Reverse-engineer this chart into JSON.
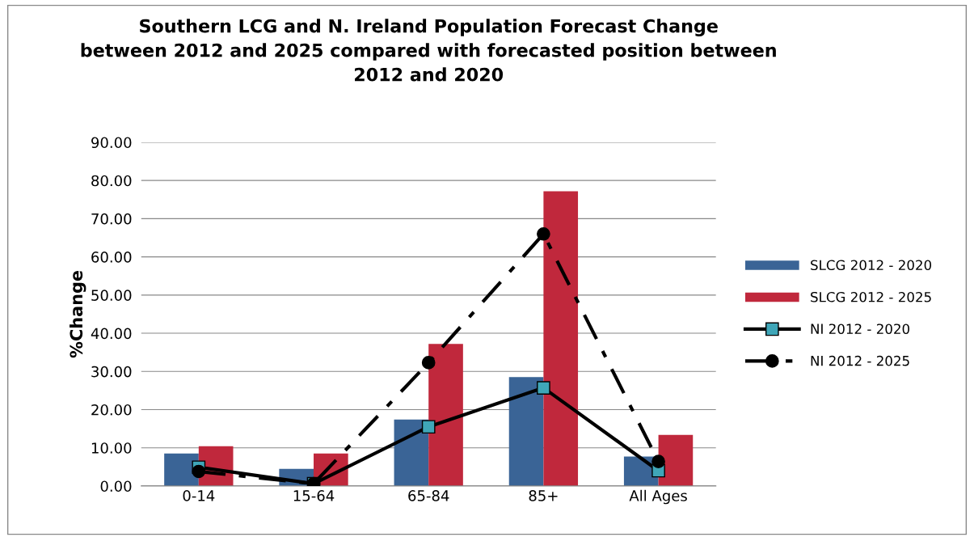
{
  "chart_data": {
    "type": "bar",
    "title": "Southern LCG and N. Ireland Population Forecast Change\nbetween 2012 and 2025 compared with forecasted position between\n2012 and 2020",
    "ylabel": "%Change",
    "categories": [
      "0-14",
      "15-64",
      "65-84",
      "85+",
      "All Ages"
    ],
    "series": [
      {
        "name": "SLCG 2012 - 2020",
        "color": "#3a6496",
        "values": [
          8.5,
          4.5,
          17.4,
          28.5,
          7.7
        ]
      },
      {
        "name": "SLCG 2012 - 2025",
        "color": "#c0283c",
        "values": [
          10.4,
          8.5,
          37.2,
          77.2,
          13.4
        ]
      },
      {
        "name": "NI 2012 - 2020",
        "type": "line",
        "color": "#000000",
        "marker": "square",
        "line_style": "solid",
        "values": [
          4.9,
          0.6,
          15.5,
          25.7,
          4.0
        ]
      },
      {
        "name": "NI 2012 - 2025",
        "type": "line",
        "color": "#000000",
        "marker": "circle",
        "line_style": "dashed",
        "values": [
          3.8,
          0.6,
          32.3,
          66.0,
          6.4
        ]
      }
    ],
    "ylim": [
      0,
      90
    ],
    "yticks": [
      {
        "value": 0,
        "label": "0.00"
      },
      {
        "value": 10,
        "label": "10.00"
      },
      {
        "value": 20,
        "label": "20.00"
      },
      {
        "value": 30,
        "label": "30.00"
      },
      {
        "value": 40,
        "label": "40.00"
      },
      {
        "value": 50,
        "label": "50.00"
      },
      {
        "value": 60,
        "label": "60.00"
      },
      {
        "value": 70,
        "label": "70.00"
      },
      {
        "value": 80,
        "label": "80.00"
      },
      {
        "value": 90,
        "label": "90.00"
      }
    ],
    "grid": "y",
    "legend": "right"
  }
}
